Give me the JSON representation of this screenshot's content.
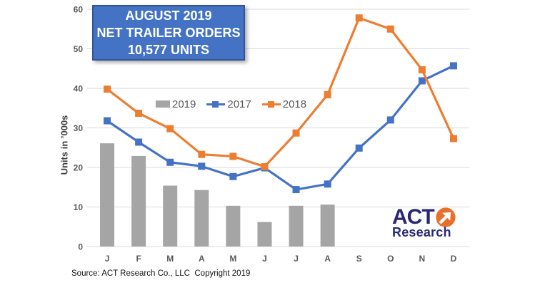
{
  "title_box": {
    "lines": [
      "AUGUST 2019",
      "NET TRAILER ORDERS",
      "10,577 UNITS"
    ],
    "bg_color": "#4472C4",
    "border_color": "#2F5597",
    "text_color": "#FFFFFF"
  },
  "legend": {
    "items": [
      {
        "label": "2019",
        "series_type": "bar",
        "color": "#A5A5A5"
      },
      {
        "label": "2017",
        "series_type": "line",
        "color": "#4472C4"
      },
      {
        "label": "2018",
        "series_type": "line",
        "color": "#ED7D31"
      }
    ]
  },
  "source_note": "Source: ACT Research Co., LLC  Copyright 2019",
  "logo": {
    "text_top": "ACT",
    "text_bottom": "Research",
    "navy_color": "#2A2870",
    "orange_color": "#E8702A",
    "icon": "northeast-arrow-icon"
  },
  "chart_data": {
    "type": "combo-bar-line",
    "title": "AUGUST 2019 NET TRAILER ORDERS 10,577 UNITS",
    "xlabel": "",
    "ylabel": "Units in ’000s",
    "categories": [
      "J",
      "F",
      "M",
      "A",
      "M",
      "J",
      "J",
      "A",
      "S",
      "O",
      "N",
      "D"
    ],
    "series": [
      {
        "name": "2019",
        "type": "bar",
        "color": "#A5A5A5",
        "values": [
          26.1,
          22.9,
          15.4,
          14.3,
          10.3,
          6.2,
          10.3,
          10.6,
          null,
          null,
          null,
          null
        ]
      },
      {
        "name": "2017",
        "type": "line",
        "color": "#4472C4",
        "values": [
          31.8,
          26.4,
          21.3,
          20.3,
          17.7,
          19.9,
          14.4,
          15.8,
          24.9,
          32.0,
          41.9,
          45.7
        ]
      },
      {
        "name": "2018",
        "type": "line",
        "color": "#ED7D31",
        "values": [
          39.8,
          33.7,
          29.8,
          23.3,
          22.8,
          20.2,
          28.7,
          38.4,
          57.8,
          55.0,
          44.7,
          27.3
        ]
      }
    ],
    "ylim": [
      0,
      60
    ],
    "yticks": [
      0,
      10,
      20,
      30,
      40,
      50,
      60
    ],
    "grid": true,
    "legend_position": "inside-top-center",
    "units": "thousands of trailer orders"
  }
}
